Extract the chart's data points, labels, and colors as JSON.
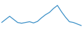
{
  "x": [
    0,
    1,
    2,
    3,
    4,
    5,
    6,
    7,
    8,
    9,
    10,
    11,
    12,
    13,
    14,
    15,
    16,
    17,
    18,
    19,
    20
  ],
  "y": [
    4.5,
    6.5,
    8.5,
    6.5,
    4.5,
    4.0,
    4.5,
    5.0,
    4.2,
    5.2,
    7.5,
    9.5,
    11.0,
    13.5,
    15.5,
    11.5,
    8.0,
    5.0,
    4.5,
    3.5,
    2.5
  ],
  "line_color": "#3a8fc7",
  "line_width": 0.9,
  "background_color": "#ffffff",
  "ylim_min": 0,
  "ylim_max": 18,
  "xlim_min": 0,
  "xlim_max": 20
}
